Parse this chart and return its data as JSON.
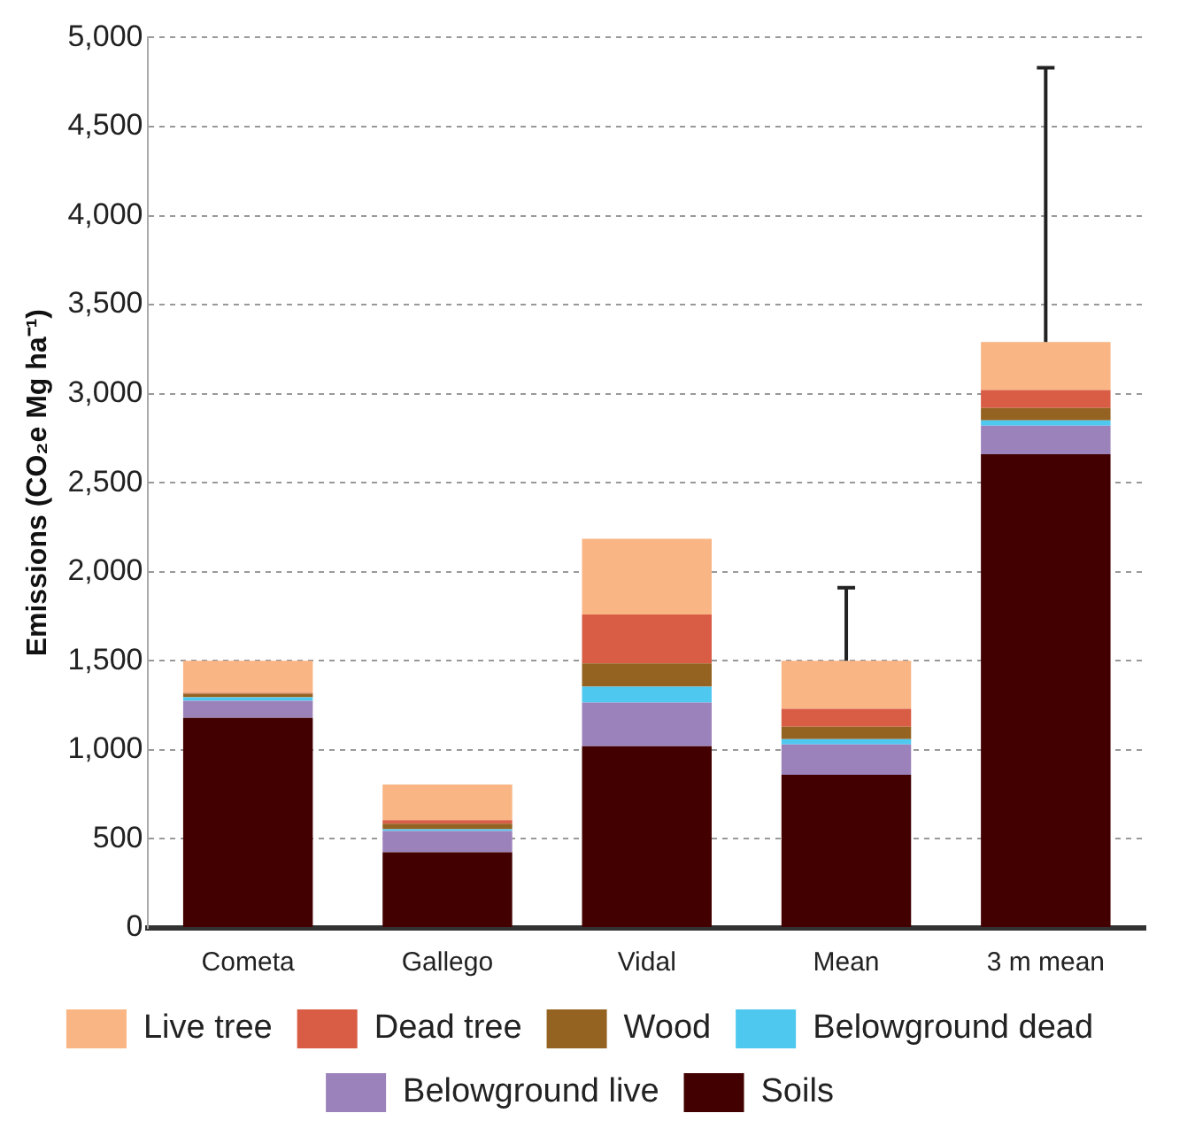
{
  "chart_data": {
    "type": "bar",
    "stacked": true,
    "ylabel": "Emissions (CO₂e Mg ha⁻¹)",
    "categories": [
      "Cometa",
      "Gallego",
      "Vidal",
      "Mean",
      "3 m mean"
    ],
    "series": [
      {
        "name": "Soils",
        "color": "#420000",
        "values": [
          1180,
          425,
          1020,
          860,
          2660
        ]
      },
      {
        "name": "Belowground live",
        "color": "#9c82bb",
        "values": [
          95,
          120,
          245,
          170,
          160
        ]
      },
      {
        "name": "Belowground dead",
        "color": "#4fc8f0",
        "values": [
          20,
          10,
          90,
          30,
          30
        ]
      },
      {
        "name": "Wood",
        "color": "#946322",
        "values": [
          20,
          30,
          130,
          70,
          70
        ]
      },
      {
        "name": "Dead tree",
        "color": "#d95c45",
        "values": [
          5,
          20,
          275,
          100,
          100
        ]
      },
      {
        "name": "Live tree",
        "color": "#f9b584",
        "values": [
          180,
          200,
          425,
          270,
          270
        ],
        "errors": [
          null,
          null,
          null,
          [
            1500,
            1910
          ],
          [
            3290,
            4830
          ]
        ]
      }
    ],
    "ylim": [
      0,
      5000
    ],
    "yticks": [
      0,
      500,
      {
        "value": 1000,
        "label": "1,000"
      },
      {
        "value": 1500,
        "label": "1,500"
      },
      {
        "value": 2000,
        "label": "2,000"
      },
      {
        "value": 2500,
        "label": "2,500"
      },
      {
        "value": 3000,
        "label": "3,000"
      },
      {
        "value": 3500,
        "label": "3,500"
      },
      {
        "value": 4000,
        "label": "4,000"
      },
      {
        "value": 4500,
        "label": "4,500"
      },
      {
        "value": 5000,
        "label": "5,000"
      }
    ],
    "grid": "y",
    "legend": "bottom"
  }
}
